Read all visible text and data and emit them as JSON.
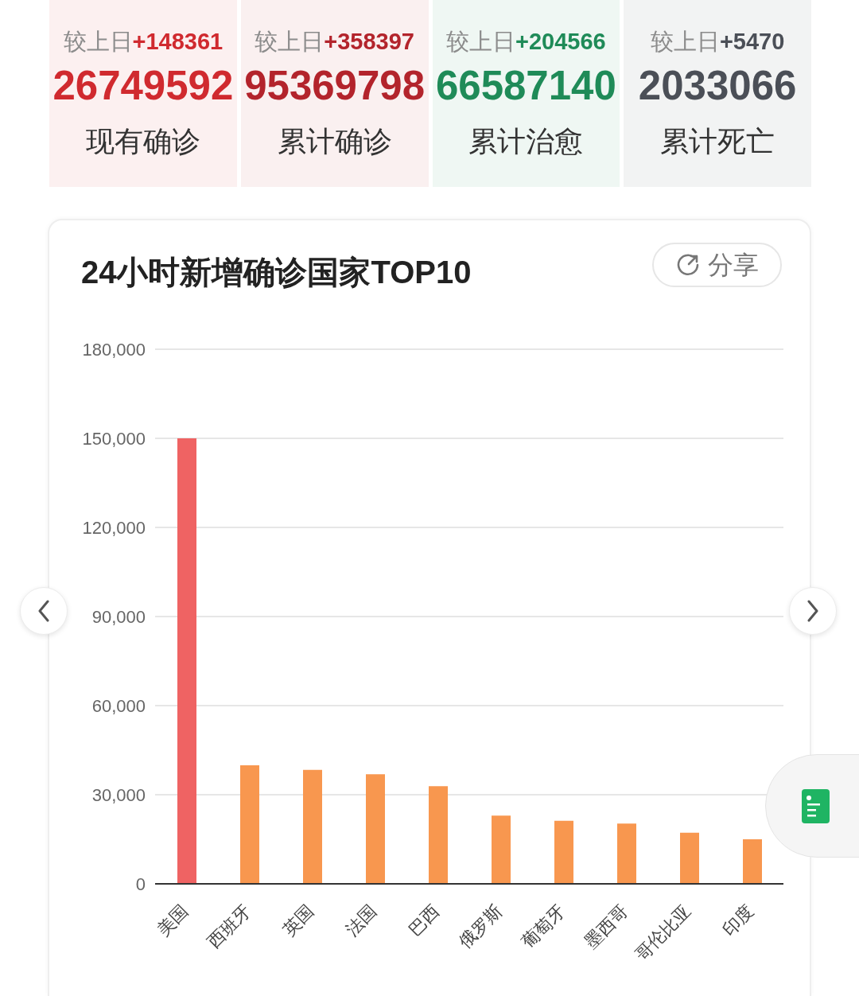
{
  "chart_data": [
    {
      "type": "other",
      "categories": [
        "现有确诊",
        "累计确诊",
        "累计治愈",
        "累计死亡"
      ],
      "values": [
        26749592,
        95369798,
        66587140,
        2033066
      ],
      "value_labels": [
        "26749592",
        "95369798",
        "66587140",
        "2033066"
      ],
      "colors": [
        "#d02a2f",
        "#b3242c",
        "#1f8b58",
        "#4b4f57"
      ],
      "annotations": [
        "较上日+148361",
        "较上日+358397",
        "较上日+204566",
        "较上日+5470"
      ]
    },
    {
      "type": "bar",
      "title": "24小时新增确诊国家TOP10",
      "annotations": [
        "分享"
      ],
      "categories": [
        "美国",
        "西班牙",
        "英国",
        "法国",
        "巴西",
        "俄罗斯",
        "葡萄牙",
        "墨西哥",
        "哥伦比亚",
        "印度"
      ],
      "values": [
        150000,
        39900,
        38400,
        36900,
        32900,
        23000,
        21200,
        20300,
        17200,
        15000
      ],
      "colors": [
        "#ef6363",
        "#f8974f",
        "#f8974f",
        "#f8974f",
        "#f8974f",
        "#f8974f",
        "#f8974f",
        "#f8974f",
        "#f8974f",
        "#f8974f"
      ],
      "ylim": [
        0,
        180000
      ],
      "yticks": [
        0,
        {
          "value": 30000,
          "label": "30,000"
        },
        {
          "value": 60000,
          "label": "60,000"
        },
        {
          "value": 90000,
          "label": "90,000"
        },
        {
          "value": 120000,
          "label": "120,000"
        },
        {
          "value": 150000,
          "label": "150,000"
        },
        {
          "value": 180000,
          "label": "180,000"
        }
      ],
      "grid": "y"
    }
  ]
}
